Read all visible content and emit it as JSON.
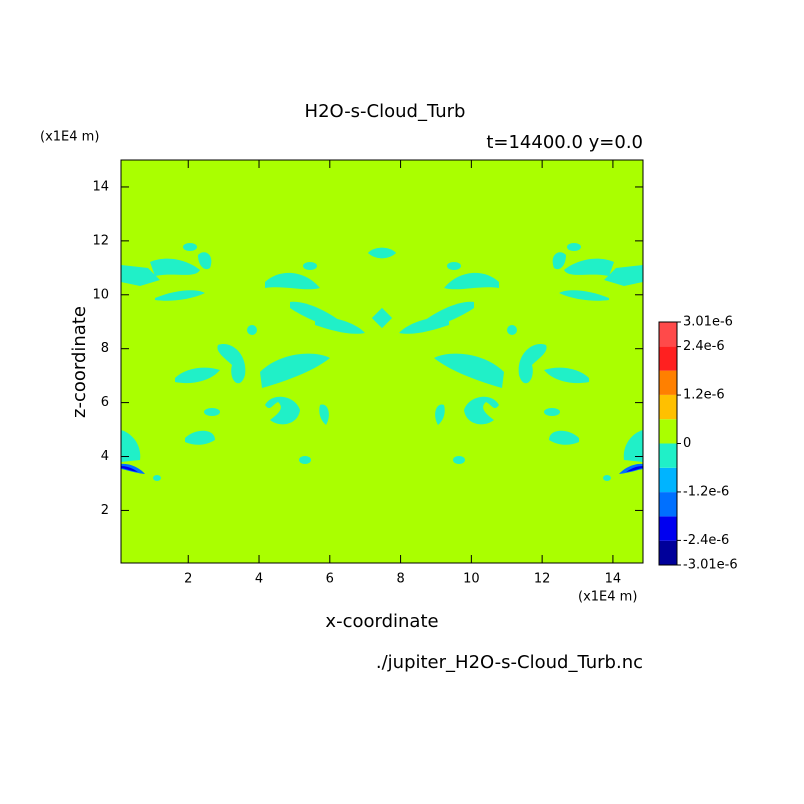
{
  "chart_data": {
    "type": "contour",
    "title": "H2O-s-Cloud_Turb",
    "subtitle": "t=14400.0 y=0.0",
    "x_label": "x-coordinate",
    "y_label": "z-coordinate",
    "x_unit": "(x1E4 m)",
    "y_unit": "(x1E4 m)",
    "source": "./jupiter_H2O-s-Cloud_Turb.nc",
    "xlim": [
      0.1,
      14.85
    ],
    "ylim": [
      0.05,
      15
    ],
    "xticks": [
      2,
      4,
      6,
      8,
      10,
      12,
      14
    ],
    "yticks": [
      2,
      4,
      6,
      8,
      10,
      12,
      14
    ],
    "colorbar": {
      "lim": [
        -3.01e-06,
        3.01e-06
      ],
      "colors": [
        "#00009a",
        "#0000f0",
        "#0070ff",
        "#00b4ff",
        "#20f0c8",
        "#aaff00",
        "#ffc000",
        "#ff8000",
        "#ff2020",
        "#ff4a4a"
      ],
      "ticks": [
        {
          "value": -3.01e-06,
          "label": "-3.01e-6"
        },
        {
          "value": -2.4e-06,
          "label": "-2.4e-6"
        },
        {
          "value": -1.2e-06,
          "label": "-1.2e-6"
        },
        0,
        {
          "value": 1.2e-06,
          "label": "1.2e-6"
        },
        {
          "value": 2.4e-06,
          "label": "2.4e-6"
        },
        {
          "value": 3.01e-06,
          "label": "3.01e-6"
        }
      ]
    }
  }
}
